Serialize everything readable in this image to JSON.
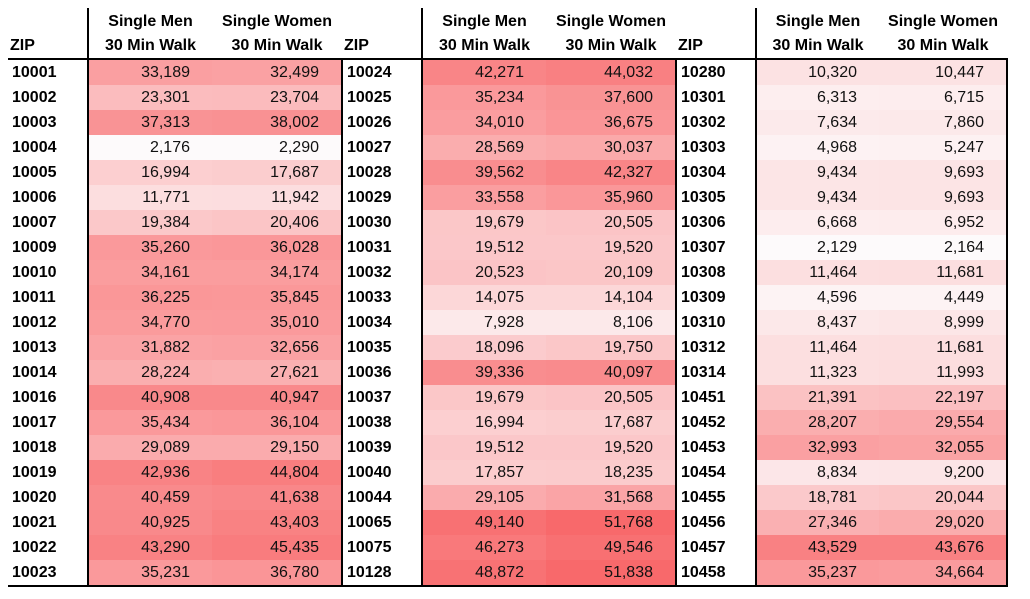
{
  "headers": {
    "zip": "ZIP",
    "men_line1": "Single Men",
    "men_line2": "30 Min Walk",
    "women_line1": "Single Women",
    "women_line2": "30 Min Walk"
  },
  "color_scale": {
    "low": "#fdfaFB",
    "high": "#f8696b",
    "min": 2129,
    "max": 51838
  },
  "groups": [
    {
      "rows": [
        {
          "zip": "10001",
          "men": "33,189",
          "women": "32,499"
        },
        {
          "zip": "10002",
          "men": "23,301",
          "women": "23,704"
        },
        {
          "zip": "10003",
          "men": "37,313",
          "women": "38,002"
        },
        {
          "zip": "10004",
          "men": "2,176",
          "women": "2,290"
        },
        {
          "zip": "10005",
          "men": "16,994",
          "women": "17,687"
        },
        {
          "zip": "10006",
          "men": "11,771",
          "women": "11,942"
        },
        {
          "zip": "10007",
          "men": "19,384",
          "women": "20,406"
        },
        {
          "zip": "10009",
          "men": "35,260",
          "women": "36,028"
        },
        {
          "zip": "10010",
          "men": "34,161",
          "women": "34,174"
        },
        {
          "zip": "10011",
          "men": "36,225",
          "women": "35,845"
        },
        {
          "zip": "10012",
          "men": "34,770",
          "women": "35,010"
        },
        {
          "zip": "10013",
          "men": "31,882",
          "women": "32,656"
        },
        {
          "zip": "10014",
          "men": "28,224",
          "women": "27,621"
        },
        {
          "zip": "10016",
          "men": "40,908",
          "women": "40,947"
        },
        {
          "zip": "10017",
          "men": "35,434",
          "women": "36,104"
        },
        {
          "zip": "10018",
          "men": "29,089",
          "women": "29,150"
        },
        {
          "zip": "10019",
          "men": "42,936",
          "women": "44,804"
        },
        {
          "zip": "10020",
          "men": "40,459",
          "women": "41,638"
        },
        {
          "zip": "10021",
          "men": "40,925",
          "women": "43,403"
        },
        {
          "zip": "10022",
          "men": "43,290",
          "women": "45,435"
        },
        {
          "zip": "10023",
          "men": "35,231",
          "women": "36,780"
        }
      ]
    },
    {
      "rows": [
        {
          "zip": "10024",
          "men": "42,271",
          "women": "44,032"
        },
        {
          "zip": "10025",
          "men": "35,234",
          "women": "37,600"
        },
        {
          "zip": "10026",
          "men": "34,010",
          "women": "36,675"
        },
        {
          "zip": "10027",
          "men": "28,569",
          "women": "30,037"
        },
        {
          "zip": "10028",
          "men": "39,562",
          "women": "42,327"
        },
        {
          "zip": "10029",
          "men": "33,558",
          "women": "35,960"
        },
        {
          "zip": "10030",
          "men": "19,679",
          "women": "20,505"
        },
        {
          "zip": "10031",
          "men": "19,512",
          "women": "19,520"
        },
        {
          "zip": "10032",
          "men": "20,523",
          "women": "20,109"
        },
        {
          "zip": "10033",
          "men": "14,075",
          "women": "14,104"
        },
        {
          "zip": "10034",
          "men": "7,928",
          "women": "8,106"
        },
        {
          "zip": "10035",
          "men": "18,096",
          "women": "19,750"
        },
        {
          "zip": "10036",
          "men": "39,336",
          "women": "40,097"
        },
        {
          "zip": "10037",
          "men": "19,679",
          "women": "20,505"
        },
        {
          "zip": "10038",
          "men": "16,994",
          "women": "17,687"
        },
        {
          "zip": "10039",
          "men": "19,512",
          "women": "19,520"
        },
        {
          "zip": "10040",
          "men": "17,857",
          "women": "18,235"
        },
        {
          "zip": "10044",
          "men": "29,105",
          "women": "31,568"
        },
        {
          "zip": "10065",
          "men": "49,140",
          "women": "51,768"
        },
        {
          "zip": "10075",
          "men": "46,273",
          "women": "49,546"
        },
        {
          "zip": "10128",
          "men": "48,872",
          "women": "51,838"
        }
      ]
    },
    {
      "rows": [
        {
          "zip": "10280",
          "men": "10,320",
          "women": "10,447"
        },
        {
          "zip": "10301",
          "men": "6,313",
          "women": "6,715"
        },
        {
          "zip": "10302",
          "men": "7,634",
          "women": "7,860"
        },
        {
          "zip": "10303",
          "men": "4,968",
          "women": "5,247"
        },
        {
          "zip": "10304",
          "men": "9,434",
          "women": "9,693"
        },
        {
          "zip": "10305",
          "men": "9,434",
          "women": "9,693"
        },
        {
          "zip": "10306",
          "men": "6,668",
          "women": "6,952"
        },
        {
          "zip": "10307",
          "men": "2,129",
          "women": "2,164"
        },
        {
          "zip": "10308",
          "men": "11,464",
          "women": "11,681"
        },
        {
          "zip": "10309",
          "men": "4,596",
          "women": "4,449"
        },
        {
          "zip": "10310",
          "men": "8,437",
          "women": "8,999"
        },
        {
          "zip": "10312",
          "men": "11,464",
          "women": "11,681"
        },
        {
          "zip": "10314",
          "men": "11,323",
          "women": "11,993"
        },
        {
          "zip": "10451",
          "men": "21,391",
          "women": "22,197"
        },
        {
          "zip": "10452",
          "men": "28,207",
          "women": "29,554"
        },
        {
          "zip": "10453",
          "men": "32,993",
          "women": "32,055"
        },
        {
          "zip": "10454",
          "men": "8,834",
          "women": "9,200"
        },
        {
          "zip": "10455",
          "men": "18,781",
          "women": "20,044"
        },
        {
          "zip": "10456",
          "men": "27,346",
          "women": "29,020"
        },
        {
          "zip": "10457",
          "men": "43,529",
          "women": "43,676"
        },
        {
          "zip": "10458",
          "men": "35,237",
          "women": "34,664"
        }
      ]
    }
  ]
}
